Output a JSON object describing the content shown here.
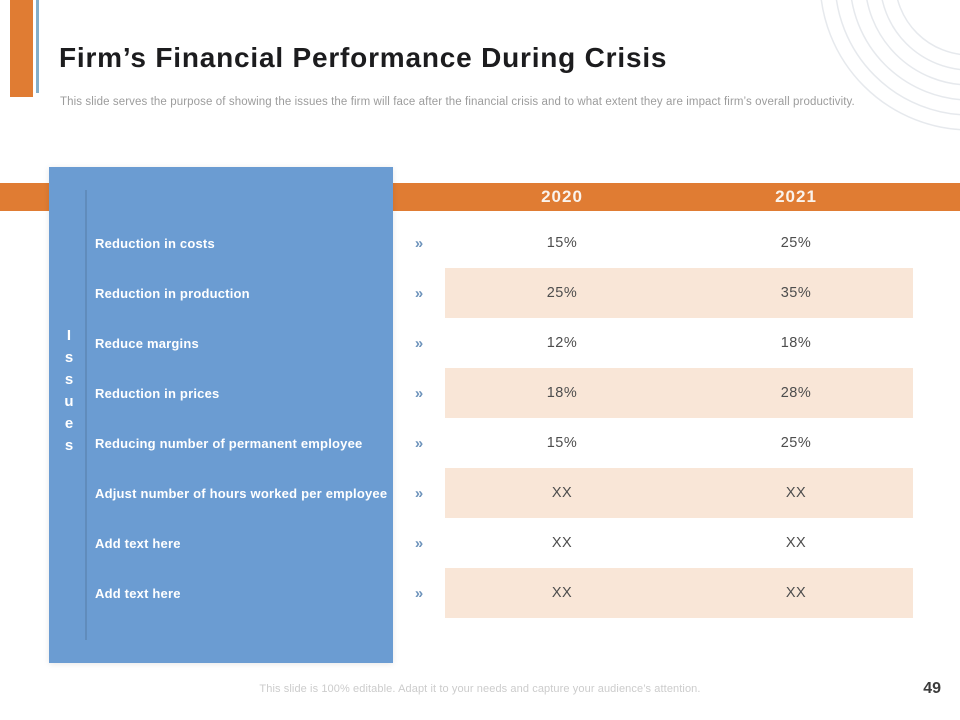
{
  "slide": {
    "title": "Firm’s Financial Performance During Crisis",
    "subtitle": "This slide serves the purpose of showing the issues the firm will face after the financial crisis and to what extent they are impact firm’s overall productivity.",
    "footer_note": "This slide is 100% editable. Adapt it to your needs and capture your audience’s attention.",
    "page_number": "49"
  },
  "table": {
    "row_group_label": "Issues",
    "row_group_letters": [
      "I",
      "s",
      "s",
      "u",
      "e",
      "s"
    ],
    "columns": [
      "2020",
      "2021"
    ],
    "bullet_glyph": "»",
    "rows": [
      {
        "label": "Reduction in costs",
        "values": [
          "15%",
          "25%"
        ],
        "shaded": false
      },
      {
        "label": "Reduction in production",
        "values": [
          "25%",
          "35%"
        ],
        "shaded": true
      },
      {
        "label": "Reduce margins",
        "values": [
          "12%",
          "18%"
        ],
        "shaded": false
      },
      {
        "label": "Reduction in prices",
        "values": [
          "18%",
          "28%"
        ],
        "shaded": true
      },
      {
        "label": "Reducing number of permanent employee",
        "values": [
          "15%",
          "25%"
        ],
        "shaded": false
      },
      {
        "label": "Adjust number of hours worked per employee",
        "values": [
          "XX",
          "XX"
        ],
        "shaded": true
      },
      {
        "label": "Add text here",
        "values": [
          "XX",
          "XX"
        ],
        "shaded": false
      },
      {
        "label": "Add text here",
        "values": [
          "XX",
          "XX"
        ],
        "shaded": true
      }
    ]
  },
  "colors": {
    "accent_orange": "#e07c33",
    "panel_blue": "#6b9cd2",
    "row_shade_peach": "#f9e6d7",
    "chevron_blue": "#6d93bb",
    "ring_gray": "#e6e9ed"
  }
}
